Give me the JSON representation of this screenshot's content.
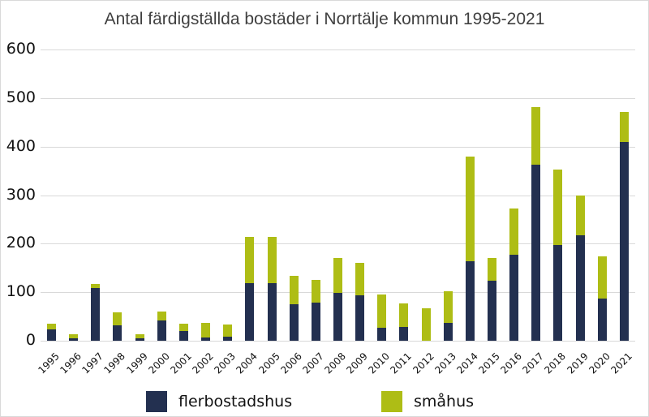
{
  "chart_data": {
    "type": "bar",
    "stacked": true,
    "title": "Antal färdigställda bostäder i Norrtälje kommun 1995-2021",
    "xlabel": "",
    "ylabel": "",
    "ylim": [
      0,
      600
    ],
    "yticks": [
      0,
      100,
      200,
      300,
      400,
      500,
      600
    ],
    "grid": true,
    "legend_position": "bottom",
    "categories": [
      "1995",
      "1996",
      "1997",
      "1998",
      "1999",
      "2000",
      "2001",
      "2002",
      "2003",
      "2004",
      "2005",
      "2006",
      "2007",
      "2008",
      "2009",
      "2010",
      "2011",
      "2012",
      "2013",
      "2014",
      "2015",
      "2016",
      "2017",
      "2018",
      "2019",
      "2020",
      "2021"
    ],
    "series": [
      {
        "name": "flerbostadshus",
        "color": "#233050",
        "values": [
          23,
          5,
          108,
          31,
          5,
          41,
          20,
          7,
          9,
          118,
          118,
          75,
          79,
          98,
          94,
          26,
          29,
          0,
          36,
          163,
          123,
          177,
          362,
          198,
          217,
          87,
          409
        ]
      },
      {
        "name": "småhus",
        "color": "#aebd15",
        "values": [
          12,
          8,
          9,
          28,
          8,
          19,
          15,
          29,
          24,
          96,
          96,
          59,
          47,
          73,
          67,
          69,
          48,
          67,
          66,
          216,
          48,
          95,
          119,
          154,
          83,
          87,
          62
        ]
      }
    ]
  }
}
